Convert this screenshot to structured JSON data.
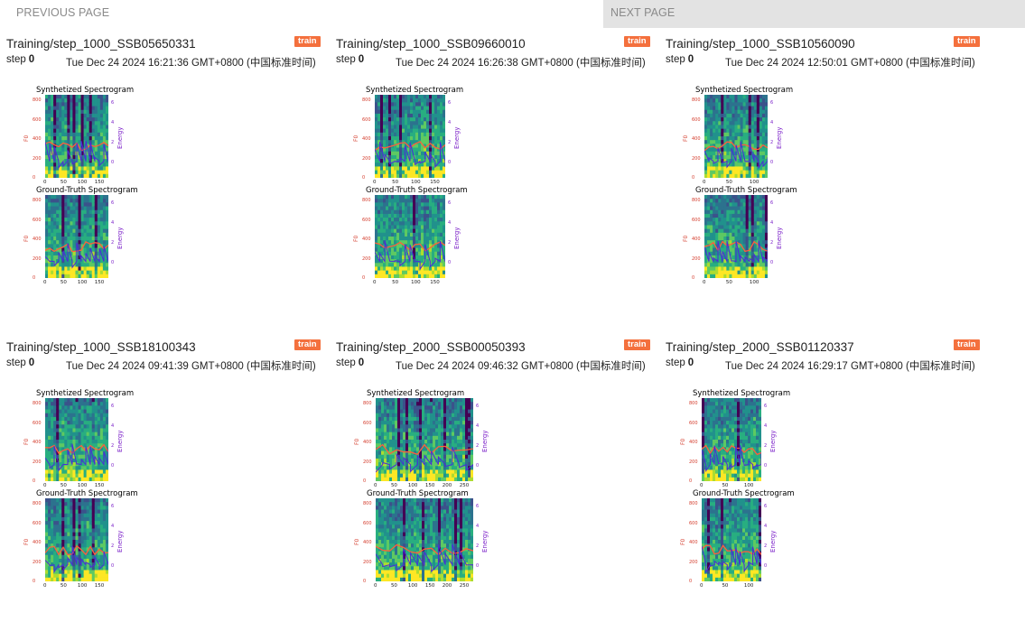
{
  "pager": {
    "prev_label": "PREVIOUS PAGE",
    "next_label": "NEXT PAGE"
  },
  "common": {
    "tag": "train",
    "step_label": "step",
    "synth_title": "Synthetized Spectrogram",
    "gt_title": "Ground-Truth Spectrogram",
    "f0_label": "F0",
    "energy_label": "Energy",
    "f0_ticks": [
      "0",
      "200",
      "400",
      "600",
      "800"
    ],
    "energy_ticks": [
      "0",
      "2",
      "4",
      "6"
    ]
  },
  "cards": [
    {
      "title": "Training/step_1000_SSB05650331",
      "step": "0",
      "time": "Tue Dec 24 2024 16:21:36 GMT+0800 (中国标准时间)",
      "x_ticks": [
        "0",
        "50",
        "100",
        "150"
      ]
    },
    {
      "title": "Training/step_1000_SSB09660010",
      "step": "0",
      "time": "Tue Dec 24 2024 16:26:38 GMT+0800 (中国标准时间)",
      "x_ticks": [
        "0",
        "50",
        "100",
        "150"
      ]
    },
    {
      "title": "Training/step_1000_SSB10560090",
      "step": "0",
      "time": "Tue Dec 24 2024 12:50:01 GMT+0800 (中国标准时间)",
      "x_ticks": [
        "0",
        "50",
        "100"
      ]
    },
    {
      "title": "Training/step_1000_SSB18100343",
      "step": "0",
      "time": "Tue Dec 24 2024 09:41:39 GMT+0800 (中国标准时间)",
      "x_ticks": [
        "0",
        "50",
        "100",
        "150"
      ]
    },
    {
      "title": "Training/step_2000_SSB00050393",
      "step": "0",
      "time": "Tue Dec 24 2024 09:46:32 GMT+0800 (中国标准时间)",
      "x_ticks": [
        "0",
        "50",
        "100",
        "150",
        "200",
        "250"
      ]
    },
    {
      "title": "Training/step_2000_SSB01120337",
      "step": "0",
      "time": "Tue Dec 24 2024 16:29:17 GMT+0800 (中国标准时间)",
      "x_ticks": [
        "0",
        "50",
        "100"
      ]
    }
  ]
}
